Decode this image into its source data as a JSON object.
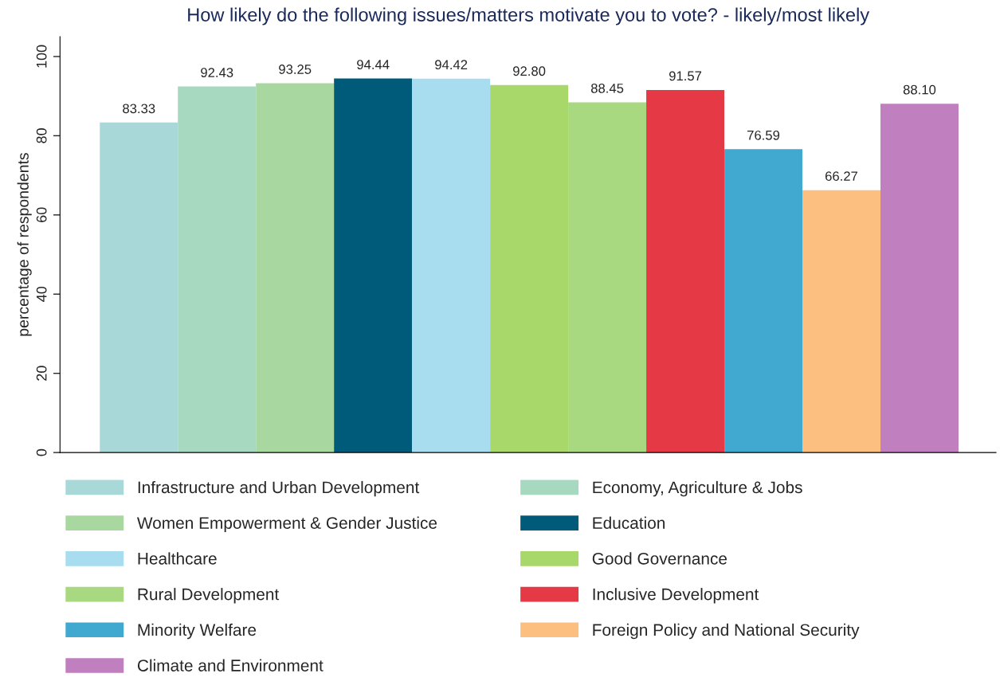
{
  "chart_data": {
    "type": "bar",
    "title": "How likely do the following issues/matters motivate you to vote? - likely/most likely",
    "ylabel": "percentage of respondents",
    "categories": [
      null
    ],
    "series": [
      {
        "name": "Infrastructure and Urban Development",
        "color": "#a8d8d8",
        "values": [
          83.33
        ]
      },
      {
        "name": "Economy, Agriculture & Jobs",
        "color": "#a6d9bf",
        "values": [
          92.43
        ]
      },
      {
        "name": "Women Empowerment & Gender Justice",
        "color": "#a8d8a0",
        "values": [
          93.25
        ]
      },
      {
        "name": "Education",
        "color": "#005a7a",
        "values": [
          94.44
        ]
      },
      {
        "name": "Healthcare",
        "color": "#a8dcef",
        "values": [
          94.42
        ]
      },
      {
        "name": "Good Governance",
        "color": "#a8d86a",
        "values": [
          92.8
        ]
      },
      {
        "name": "Rural Development",
        "color": "#a8d880",
        "values": [
          88.45
        ]
      },
      {
        "name": "Inclusive Development",
        "color": "#e63946",
        "values": [
          91.57
        ]
      },
      {
        "name": "Minority Welfare",
        "color": "#41a8d0",
        "values": [
          76.59
        ]
      },
      {
        "name": "Foreign Policy and National Security",
        "color": "#fdbf80",
        "values": [
          66.27
        ]
      },
      {
        "name": "Climate and Environment",
        "color": "#c07fbf",
        "values": [
          88.1
        ]
      }
    ],
    "value_labels": [
      "83.33",
      "92.43",
      "93.25",
      "94.44",
      "94.42",
      "92.80",
      "88.45",
      "91.57",
      "76.59",
      "66.27",
      "88.10"
    ],
    "ylim": [
      0,
      105
    ],
    "yticks": [
      0,
      20,
      40,
      60,
      80,
      100
    ],
    "grid": false,
    "legend": "bottom"
  }
}
